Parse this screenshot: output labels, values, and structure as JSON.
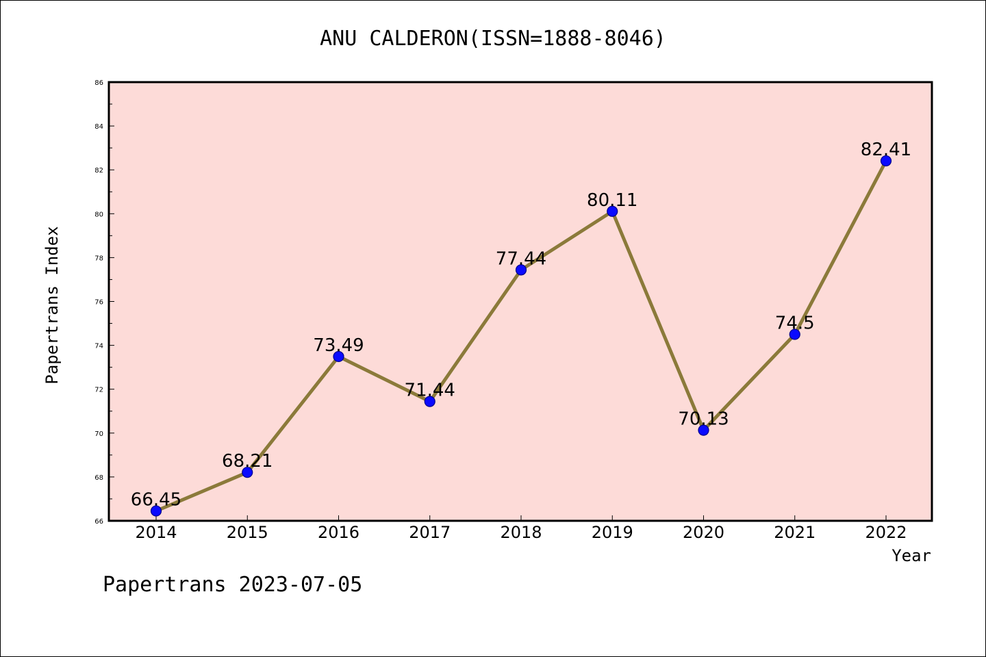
{
  "chart_data": {
    "type": "line",
    "title": "ANU CALDERON(ISSN=1888-8046)",
    "xlabel": "Year",
    "ylabel": "Papertrans Index",
    "footer": "Papertrans 2023-07-05",
    "x": [
      "2014",
      "2015",
      "2016",
      "2017",
      "2018",
      "2019",
      "2020",
      "2021",
      "2022"
    ],
    "values": [
      66.45,
      68.21,
      73.49,
      71.44,
      77.44,
      80.11,
      70.13,
      74.5,
      82.41
    ],
    "value_labels": [
      "66.45",
      "68.21",
      "73.49",
      "71.44",
      "77.44",
      "80.11",
      "70.13",
      "74.5",
      "82.41"
    ],
    "ylim": [
      66,
      86
    ],
    "yticks": [
      "66",
      "68",
      "70",
      "72",
      "74",
      "76",
      "78",
      "80",
      "82",
      "84",
      "86"
    ],
    "grid": false,
    "colors": {
      "plot_background": "#fddbd8",
      "line": "#8b7a3a",
      "marker_fill": "#0a0aff",
      "marker_edge": "#00008b"
    }
  }
}
